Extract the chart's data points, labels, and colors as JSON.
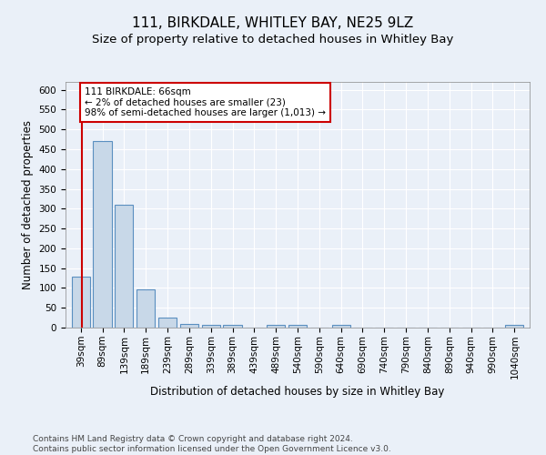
{
  "title1": "111, BIRKDALE, WHITLEY BAY, NE25 9LZ",
  "title2": "Size of property relative to detached houses in Whitley Bay",
  "xlabel": "Distribution of detached houses by size in Whitley Bay",
  "ylabel": "Number of detached properties",
  "footnote": "Contains HM Land Registry data © Crown copyright and database right 2024.\nContains public sector information licensed under the Open Government Licence v3.0.",
  "bar_labels": [
    "39sqm",
    "89sqm",
    "139sqm",
    "189sqm",
    "239sqm",
    "289sqm",
    "339sqm",
    "389sqm",
    "439sqm",
    "489sqm",
    "540sqm",
    "590sqm",
    "640sqm",
    "690sqm",
    "740sqm",
    "790sqm",
    "840sqm",
    "890sqm",
    "940sqm",
    "990sqm",
    "1040sqm"
  ],
  "bar_values": [
    128,
    470,
    310,
    97,
    25,
    10,
    6,
    6,
    0,
    7,
    7,
    0,
    6,
    0,
    0,
    0,
    0,
    0,
    0,
    0,
    6
  ],
  "bar_color": "#c8d8e8",
  "bar_edge_color": "#5a8fc0",
  "annotation_text": "111 BIRKDALE: 66sqm\n← 2% of detached houses are smaller (23)\n98% of semi-detached houses are larger (1,013) →",
  "annotation_box_color": "#ffffff",
  "annotation_box_edge": "#cc0000",
  "red_line_color": "#cc0000",
  "ylim": [
    0,
    620
  ],
  "yticks": [
    0,
    50,
    100,
    150,
    200,
    250,
    300,
    350,
    400,
    450,
    500,
    550,
    600
  ],
  "bg_color": "#eaf0f8",
  "plot_bg_color": "#eaf0f8",
  "grid_color": "#ffffff",
  "title1_fontsize": 11,
  "title2_fontsize": 9.5,
  "xlabel_fontsize": 8.5,
  "ylabel_fontsize": 8.5,
  "tick_fontsize": 7.5,
  "annotation_fontsize": 7.5,
  "footnote_fontsize": 6.5
}
